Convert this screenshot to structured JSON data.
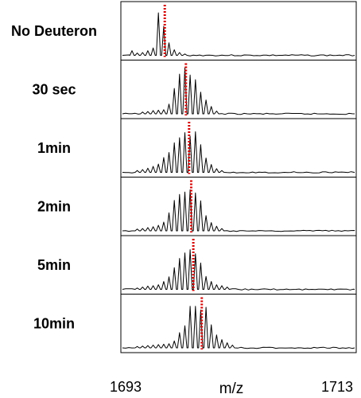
{
  "chart_data": {
    "type": "line",
    "title": "",
    "xlabel": "m/z",
    "ylabel": "",
    "xlim": [
      1693,
      1713
    ],
    "x_ticks": [
      1693,
      1713
    ],
    "grid": false,
    "marker_color": "#d40000",
    "panels": [
      {
        "label": "No Deuteron",
        "centroid_mz": 1696.7,
        "peaks": [
          [
            1693.6,
            0.1
          ],
          [
            1694.1,
            0.05
          ],
          [
            1694.6,
            0.06
          ],
          [
            1695.1,
            0.1
          ],
          [
            1695.6,
            0.16
          ],
          [
            1696.1,
            0.92
          ],
          [
            1696.6,
            0.63
          ],
          [
            1697.1,
            0.27
          ],
          [
            1697.6,
            0.12
          ],
          [
            1698.1,
            0.06
          ],
          [
            1698.6,
            0.03
          ]
        ]
      },
      {
        "label": "30 sec",
        "centroid_mz": 1698.7,
        "peaks": [
          [
            1694.6,
            0.04
          ],
          [
            1695.1,
            0.05
          ],
          [
            1695.6,
            0.07
          ],
          [
            1696.1,
            0.08
          ],
          [
            1696.6,
            0.09
          ],
          [
            1697.1,
            0.21
          ],
          [
            1697.6,
            0.55
          ],
          [
            1698.1,
            0.86
          ],
          [
            1698.6,
            1.0
          ],
          [
            1699.1,
            0.84
          ],
          [
            1699.6,
            0.74
          ],
          [
            1700.1,
            0.47
          ],
          [
            1700.6,
            0.3
          ],
          [
            1701.1,
            0.16
          ],
          [
            1701.6,
            0.06
          ]
        ]
      },
      {
        "label": "1min",
        "centroid_mz": 1699.0,
        "peaks": [
          [
            1694.1,
            0.04
          ],
          [
            1694.6,
            0.06
          ],
          [
            1695.1,
            0.09
          ],
          [
            1695.6,
            0.13
          ],
          [
            1696.1,
            0.18
          ],
          [
            1696.6,
            0.32
          ],
          [
            1697.1,
            0.43
          ],
          [
            1697.6,
            0.64
          ],
          [
            1698.1,
            0.75
          ],
          [
            1698.6,
            0.86
          ],
          [
            1699.1,
            0.78
          ],
          [
            1699.6,
            0.88
          ],
          [
            1700.1,
            0.6
          ],
          [
            1700.6,
            0.31
          ],
          [
            1701.1,
            0.17
          ],
          [
            1701.6,
            0.08
          ],
          [
            1702.1,
            0.04
          ]
        ]
      },
      {
        "label": "2min",
        "centroid_mz": 1699.2,
        "peaks": [
          [
            1694.1,
            0.04
          ],
          [
            1694.6,
            0.05
          ],
          [
            1695.1,
            0.07
          ],
          [
            1695.6,
            0.09
          ],
          [
            1696.1,
            0.12
          ],
          [
            1696.6,
            0.19
          ],
          [
            1697.1,
            0.39
          ],
          [
            1697.6,
            0.66
          ],
          [
            1698.1,
            0.79
          ],
          [
            1698.6,
            0.84
          ],
          [
            1699.1,
            0.89
          ],
          [
            1699.6,
            0.82
          ],
          [
            1700.1,
            0.65
          ],
          [
            1700.6,
            0.33
          ],
          [
            1701.1,
            0.18
          ],
          [
            1701.6,
            0.1
          ],
          [
            1702.1,
            0.05
          ]
        ]
      },
      {
        "label": "5min",
        "centroid_mz": 1699.4,
        "peaks": [
          [
            1694.1,
            0.03
          ],
          [
            1694.6,
            0.05
          ],
          [
            1695.1,
            0.07
          ],
          [
            1695.6,
            0.08
          ],
          [
            1696.1,
            0.1
          ],
          [
            1696.6,
            0.17
          ],
          [
            1697.1,
            0.27
          ],
          [
            1697.6,
            0.47
          ],
          [
            1698.1,
            0.67
          ],
          [
            1698.6,
            0.79
          ],
          [
            1699.1,
            0.86
          ],
          [
            1699.6,
            0.77
          ],
          [
            1700.1,
            0.57
          ],
          [
            1700.6,
            0.28
          ],
          [
            1701.1,
            0.17
          ],
          [
            1701.6,
            0.1
          ],
          [
            1702.1,
            0.08
          ],
          [
            1702.6,
            0.05
          ]
        ]
      },
      {
        "label": "10min",
        "centroid_mz": 1700.2,
        "peaks": [
          [
            1694.1,
            0.03
          ],
          [
            1694.6,
            0.04
          ],
          [
            1695.1,
            0.05
          ],
          [
            1695.6,
            0.06
          ],
          [
            1696.1,
            0.07
          ],
          [
            1696.6,
            0.08
          ],
          [
            1697.1,
            0.09
          ],
          [
            1697.6,
            0.15
          ],
          [
            1698.1,
            0.33
          ],
          [
            1698.6,
            0.48
          ],
          [
            1699.1,
            0.9
          ],
          [
            1699.6,
            0.9
          ],
          [
            1700.1,
            0.82
          ],
          [
            1700.6,
            0.88
          ],
          [
            1701.1,
            0.5
          ],
          [
            1701.6,
            0.28
          ],
          [
            1702.1,
            0.18
          ],
          [
            1702.6,
            0.11
          ],
          [
            1703.1,
            0.06
          ]
        ]
      }
    ]
  }
}
